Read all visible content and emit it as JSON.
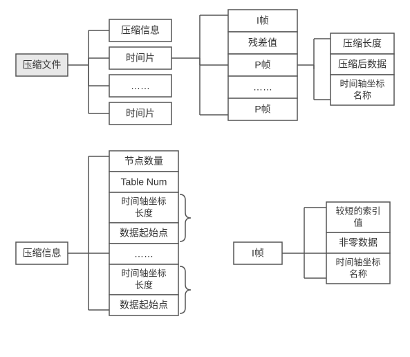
{
  "diagram": {
    "background_color": "#ffffff",
    "box_stroke": "#555555",
    "box_fill": "#ffffff",
    "shaded_fill": "#e8e8e8",
    "text_color": "#333333",
    "font_size": 14,
    "font_size_small": 13,
    "stroke_width": 1.5
  },
  "top": {
    "root": {
      "label": "压缩文件",
      "shaded": true
    },
    "col1": [
      {
        "label": "压缩信息"
      },
      {
        "label": "时间片"
      },
      {
        "label": "……"
      },
      {
        "label": "时间片"
      }
    ],
    "col2": [
      {
        "label": "I帧"
      },
      {
        "label": "残差值"
      },
      {
        "label": "P帧"
      },
      {
        "label": "……"
      },
      {
        "label": "P帧"
      }
    ],
    "col3": [
      {
        "label": "压缩长度"
      },
      {
        "label": "压缩后数据"
      },
      {
        "label_line1": "时间轴坐标",
        "label_line2": "名称",
        "tall": true
      }
    ]
  },
  "bottom_left": {
    "root": {
      "label": "压缩信息"
    },
    "items": [
      {
        "label": "节点数量"
      },
      {
        "label": "Table Num"
      },
      {
        "label_line1": "时间轴坐标",
        "label_line2": "长度",
        "tall": true
      },
      {
        "label": "数据起始点"
      },
      {
        "label": "……"
      },
      {
        "label_line1": "时间轴坐标",
        "label_line2": "长度",
        "tall": true
      },
      {
        "label": "数据起始点"
      }
    ]
  },
  "bottom_right": {
    "root": {
      "label": "I帧"
    },
    "items": [
      {
        "label_line1": "较短的索引",
        "label_line2": "值",
        "tall": true
      },
      {
        "label": "非零数据"
      },
      {
        "label_line1": "时间轴坐标",
        "label_line2": "名称",
        "tall": true
      }
    ]
  }
}
